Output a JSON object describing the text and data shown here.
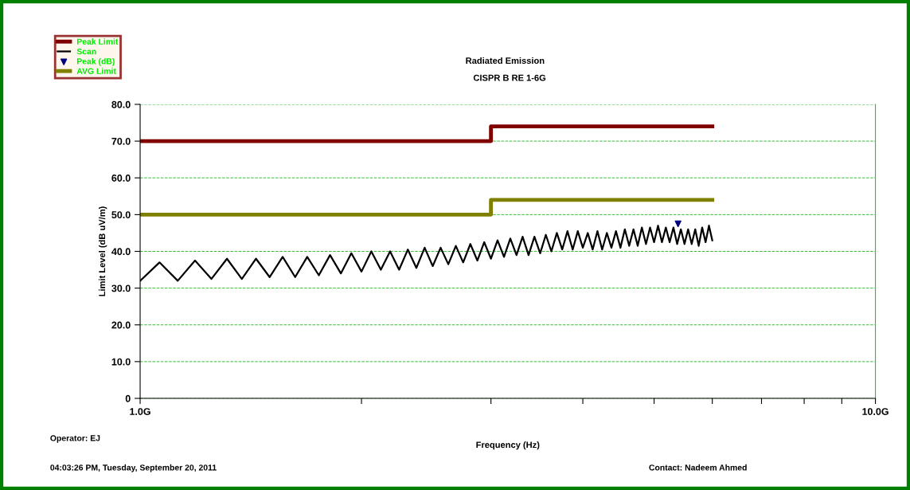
{
  "chart_data": {
    "type": "line",
    "title": "Radiated Emission",
    "subtitle": "CISPR B RE 1-6G",
    "xlabel": "Frequency (Hz)",
    "ylabel": "Limit Level (dB uV/m)",
    "log": "x",
    "xlim": [
      1,
      10
    ],
    "xticks": [
      {
        "value": 1,
        "label": "1.0G"
      },
      {
        "value": 2,
        "label": null
      },
      {
        "value": 3,
        "label": null
      },
      {
        "value": 4,
        "label": null
      },
      {
        "value": 5,
        "label": null
      },
      {
        "value": 6,
        "label": null
      },
      {
        "value": 7,
        "label": null
      },
      {
        "value": 8,
        "label": null
      },
      {
        "value": 9,
        "label": null
      },
      {
        "value": 10,
        "label": "10.0G"
      }
    ],
    "ylim": [
      0,
      80
    ],
    "yticks": [
      {
        "value": 0,
        "label": "0"
      },
      {
        "value": 10,
        "label": "10.0"
      },
      {
        "value": 20,
        "label": "20.0"
      },
      {
        "value": 30,
        "label": "30.0"
      },
      {
        "value": 40,
        "label": "40.0"
      },
      {
        "value": 50,
        "label": "50.0"
      },
      {
        "value": 60,
        "label": "60.0"
      },
      {
        "value": 70,
        "label": "70.0"
      },
      {
        "value": 80,
        "label": "80.0"
      }
    ],
    "grid": "y",
    "legend": "top left",
    "series": [
      {
        "name": "Peak Limit",
        "type": "step",
        "color": "#800000",
        "x": [
          1,
          3,
          6
        ],
        "values": [
          70,
          74,
          74
        ]
      },
      {
        "name": "Scan",
        "color": "#000000",
        "x": [
          1.0,
          1.0625,
          1.125,
          1.1875,
          1.25,
          1.3125,
          1.375,
          1.4375,
          1.5,
          1.5625,
          1.625,
          1.6875,
          1.75,
          1.8125,
          1.875,
          1.9375,
          2.0,
          2.0625,
          2.125,
          2.1875,
          2.25,
          2.3125,
          2.375,
          2.4375,
          2.5,
          2.5625,
          2.625,
          2.6875,
          2.75,
          2.8125,
          2.875,
          2.9375,
          3.0,
          3.0625,
          3.125,
          3.1875,
          3.25,
          3.3125,
          3.375,
          3.4375,
          3.5,
          3.5625,
          3.625,
          3.6875,
          3.75,
          3.8125,
          3.875,
          3.9375,
          4.0,
          4.0625,
          4.125,
          4.1875,
          4.25,
          4.3125,
          4.375,
          4.4375,
          4.5,
          4.5625,
          4.625,
          4.6875,
          4.75,
          4.8125,
          4.875,
          4.9375,
          5.0,
          5.0625,
          5.125,
          5.1875,
          5.25,
          5.3125,
          5.375,
          5.4375,
          5.5,
          5.5625,
          5.625,
          5.6875,
          5.75,
          5.8125,
          5.875,
          5.9375,
          6.0
        ],
        "values": [
          32,
          37,
          32,
          37.5,
          32.5,
          38,
          32.5,
          38,
          33,
          38.5,
          33,
          38.5,
          33.5,
          39,
          34,
          39.5,
          34.5,
          40,
          35,
          40,
          35,
          40.5,
          35.5,
          41,
          36,
          41,
          36.5,
          41.5,
          37,
          42,
          37.5,
          42.5,
          38,
          43,
          38.5,
          43.5,
          39,
          44,
          39,
          44,
          39.5,
          44.5,
          40,
          45,
          40.5,
          45.5,
          40.5,
          45.5,
          41,
          45,
          40.5,
          45.5,
          40.5,
          45,
          41,
          45.5,
          41,
          46,
          41.5,
          46,
          41.5,
          46.5,
          42,
          46.5,
          42.5,
          47,
          42.5,
          46.5,
          42.5,
          46.5,
          42,
          46,
          42,
          46,
          42,
          46,
          41.5,
          46.5,
          42.5,
          47,
          43
        ]
      },
      {
        "name": "Peak (dB)",
        "type": "scatter",
        "color": "#000080",
        "marker": "triangle",
        "x": [
          5.39
        ],
        "values": [
          47.5
        ]
      },
      {
        "name": "AVG Limit",
        "type": "step",
        "color": "#808000",
        "x": [
          1,
          3,
          6
        ],
        "values": [
          50,
          54,
          54
        ]
      }
    ],
    "annotations": [
      "Operator: EJ",
      "04:03:26 PM, Tuesday, September 20, 2011",
      "Contact: Nadeem Ahmed"
    ]
  }
}
